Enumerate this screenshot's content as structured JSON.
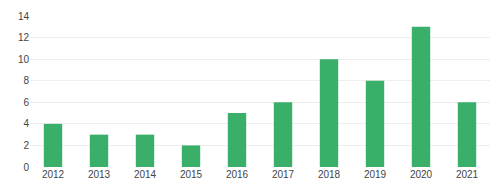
{
  "chart_data": {
    "type": "bar",
    "categories": [
      "2012",
      "2013",
      "2014",
      "2015",
      "2016",
      "2017",
      "2018",
      "2019",
      "2020",
      "2021"
    ],
    "values": [
      4,
      3,
      3,
      2,
      5,
      6,
      10,
      8,
      13,
      6
    ],
    "color": "#3aaf6a",
    "ylim": [
      0,
      14
    ],
    "yticks": [
      0,
      2,
      4,
      6,
      8,
      10,
      12,
      14
    ],
    "grid": true
  }
}
